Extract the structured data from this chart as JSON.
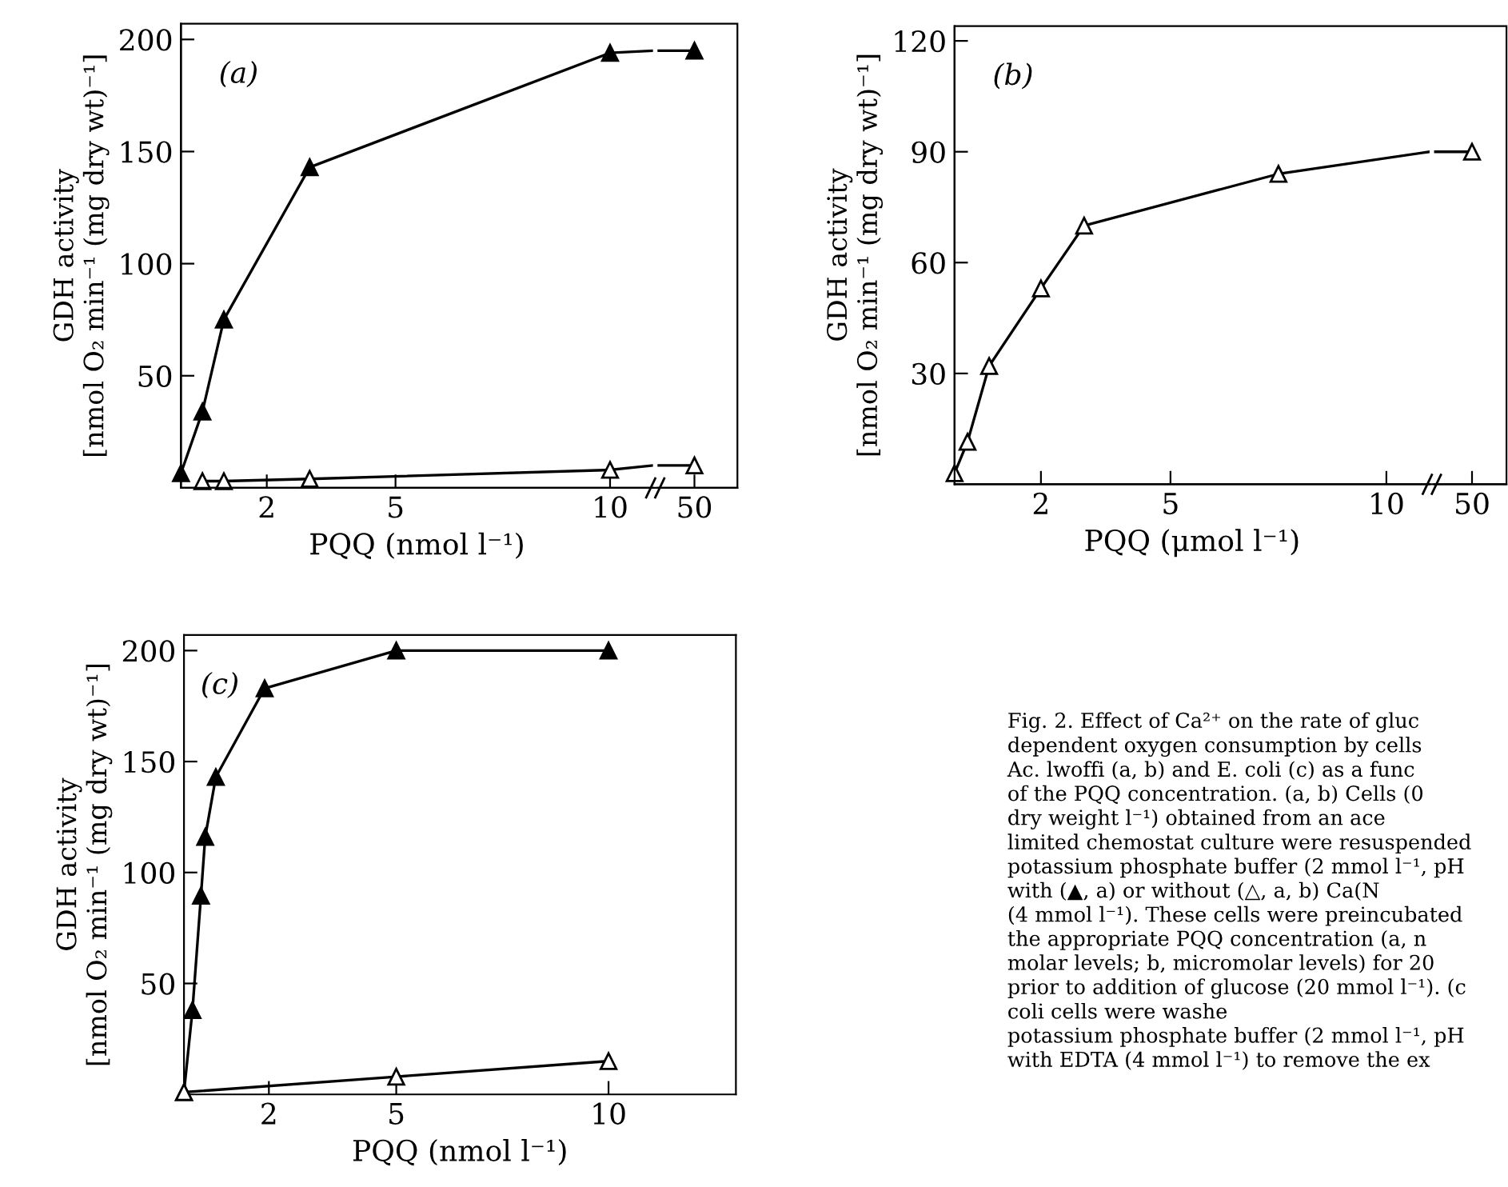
{
  "chart_data": [
    {
      "type": "line",
      "annotations": [
        "(a)"
      ],
      "xlabel": "PQQ (nmol l⁻¹)",
      "ylabel": "GDH activity\n[nmol O₂ min⁻¹ (mg dry wt)⁻¹]",
      "xlim": [
        0,
        11
      ],
      "xticks": [
        2,
        5,
        10
      ],
      "ylim": [
        0,
        207
      ],
      "yticks": [
        50,
        100,
        150,
        200
      ],
      "marker": "triangle",
      "series": [
        {
          "color": "#000000",
          "x": [
            0,
            0.5,
            1,
            3,
            10
          ],
          "values": [
            6.5,
            34,
            75,
            143,
            194
          ]
        },
        {
          "color": "#ffffff",
          "x": [
            0.5,
            1,
            3,
            10
          ],
          "values": [
            3,
            3,
            4,
            8
          ]
        }
      ]
    },
    {
      "type": "line",
      "categories": [
        "50"
      ],
      "ylim": [
        0,
        207
      ],
      "tick_labels": "x",
      "marker": "triangle",
      "series": [
        {
          "color": "#000000",
          "values": [
            195
          ]
        },
        {
          "color": "#ffffff",
          "values": [
            10
          ]
        }
      ]
    },
    {
      "type": "line",
      "annotations": [
        "(b)"
      ],
      "xlabel": "PQQ (μmol l⁻¹)",
      "ylabel": "GDH activity\n[nmol O₂ min⁻¹ (mg dry wt)⁻¹]",
      "xlim": [
        0,
        11
      ],
      "xticks": [
        2,
        5,
        10
      ],
      "ylim": [
        0,
        124
      ],
      "yticks": [
        30,
        60,
        90,
        120
      ],
      "marker": "triangle",
      "series": [
        {
          "color": "#ffffff",
          "x": [
            0,
            0.3,
            0.8,
            2,
            3,
            7.5
          ],
          "values": [
            3,
            11.5,
            32,
            53,
            70,
            84
          ]
        }
      ]
    },
    {
      "type": "line",
      "categories": [
        "50"
      ],
      "ylim": [
        0,
        124
      ],
      "tick_labels": "x",
      "marker": "triangle",
      "series": [
        {
          "color": "#ffffff",
          "values": [
            90
          ]
        }
      ]
    },
    {
      "type": "line",
      "annotations": [
        "(c)"
      ],
      "xlabel": "PQQ (nmol l⁻¹)",
      "ylabel": "GDH activity\n[nmol O₂ min⁻¹ (mg dry wt)⁻¹]",
      "xlim": [
        0,
        13
      ],
      "xticks": [
        2,
        5,
        10
      ],
      "ylim": [
        0,
        207
      ],
      "yticks": [
        50,
        100,
        150,
        200
      ],
      "marker": "triangle",
      "series": [
        {
          "color": "#000000",
          "x": [
            0,
            0.2,
            0.4,
            0.5,
            0.75,
            1.9,
            5,
            10
          ],
          "values": [
            1,
            38,
            89.5,
            116,
            143,
            183,
            200,
            200
          ]
        },
        {
          "color": "#ffffff",
          "x": [
            0,
            5,
            10
          ],
          "values": [
            1,
            8,
            15
          ]
        }
      ]
    },
    {
      "type": "other",
      "annotations": [
        "Fig. 2. Effect of Ca²⁺ on the rate of gluc\ndependent oxygen consumption by cells\nAc. lwoffi (a, b) and E. coli (c) as a func\nof the PQQ concentration. (a, b) Cells (0\ndry weight l⁻¹) obtained from an ace\nlimited chemostat culture were resuspended\npotassium phosphate buffer (2 mmol l⁻¹, pH\nwith (▲, a) or without (△, a, b) Ca(N\n(4 mmol l⁻¹). These cells were preincubated\nthe appropriate PQQ concentration (a, n\nmolar levels; b, micromolar levels) for 20\nprior to addition of glucose (20 mmol l⁻¹). (c\ncoli cells were washe\npotassium phosphate buffer (2 mmol l⁻¹, pH\nwith EDTA (4 mmol l⁻¹) to remove the ex"
      ]
    }
  ]
}
